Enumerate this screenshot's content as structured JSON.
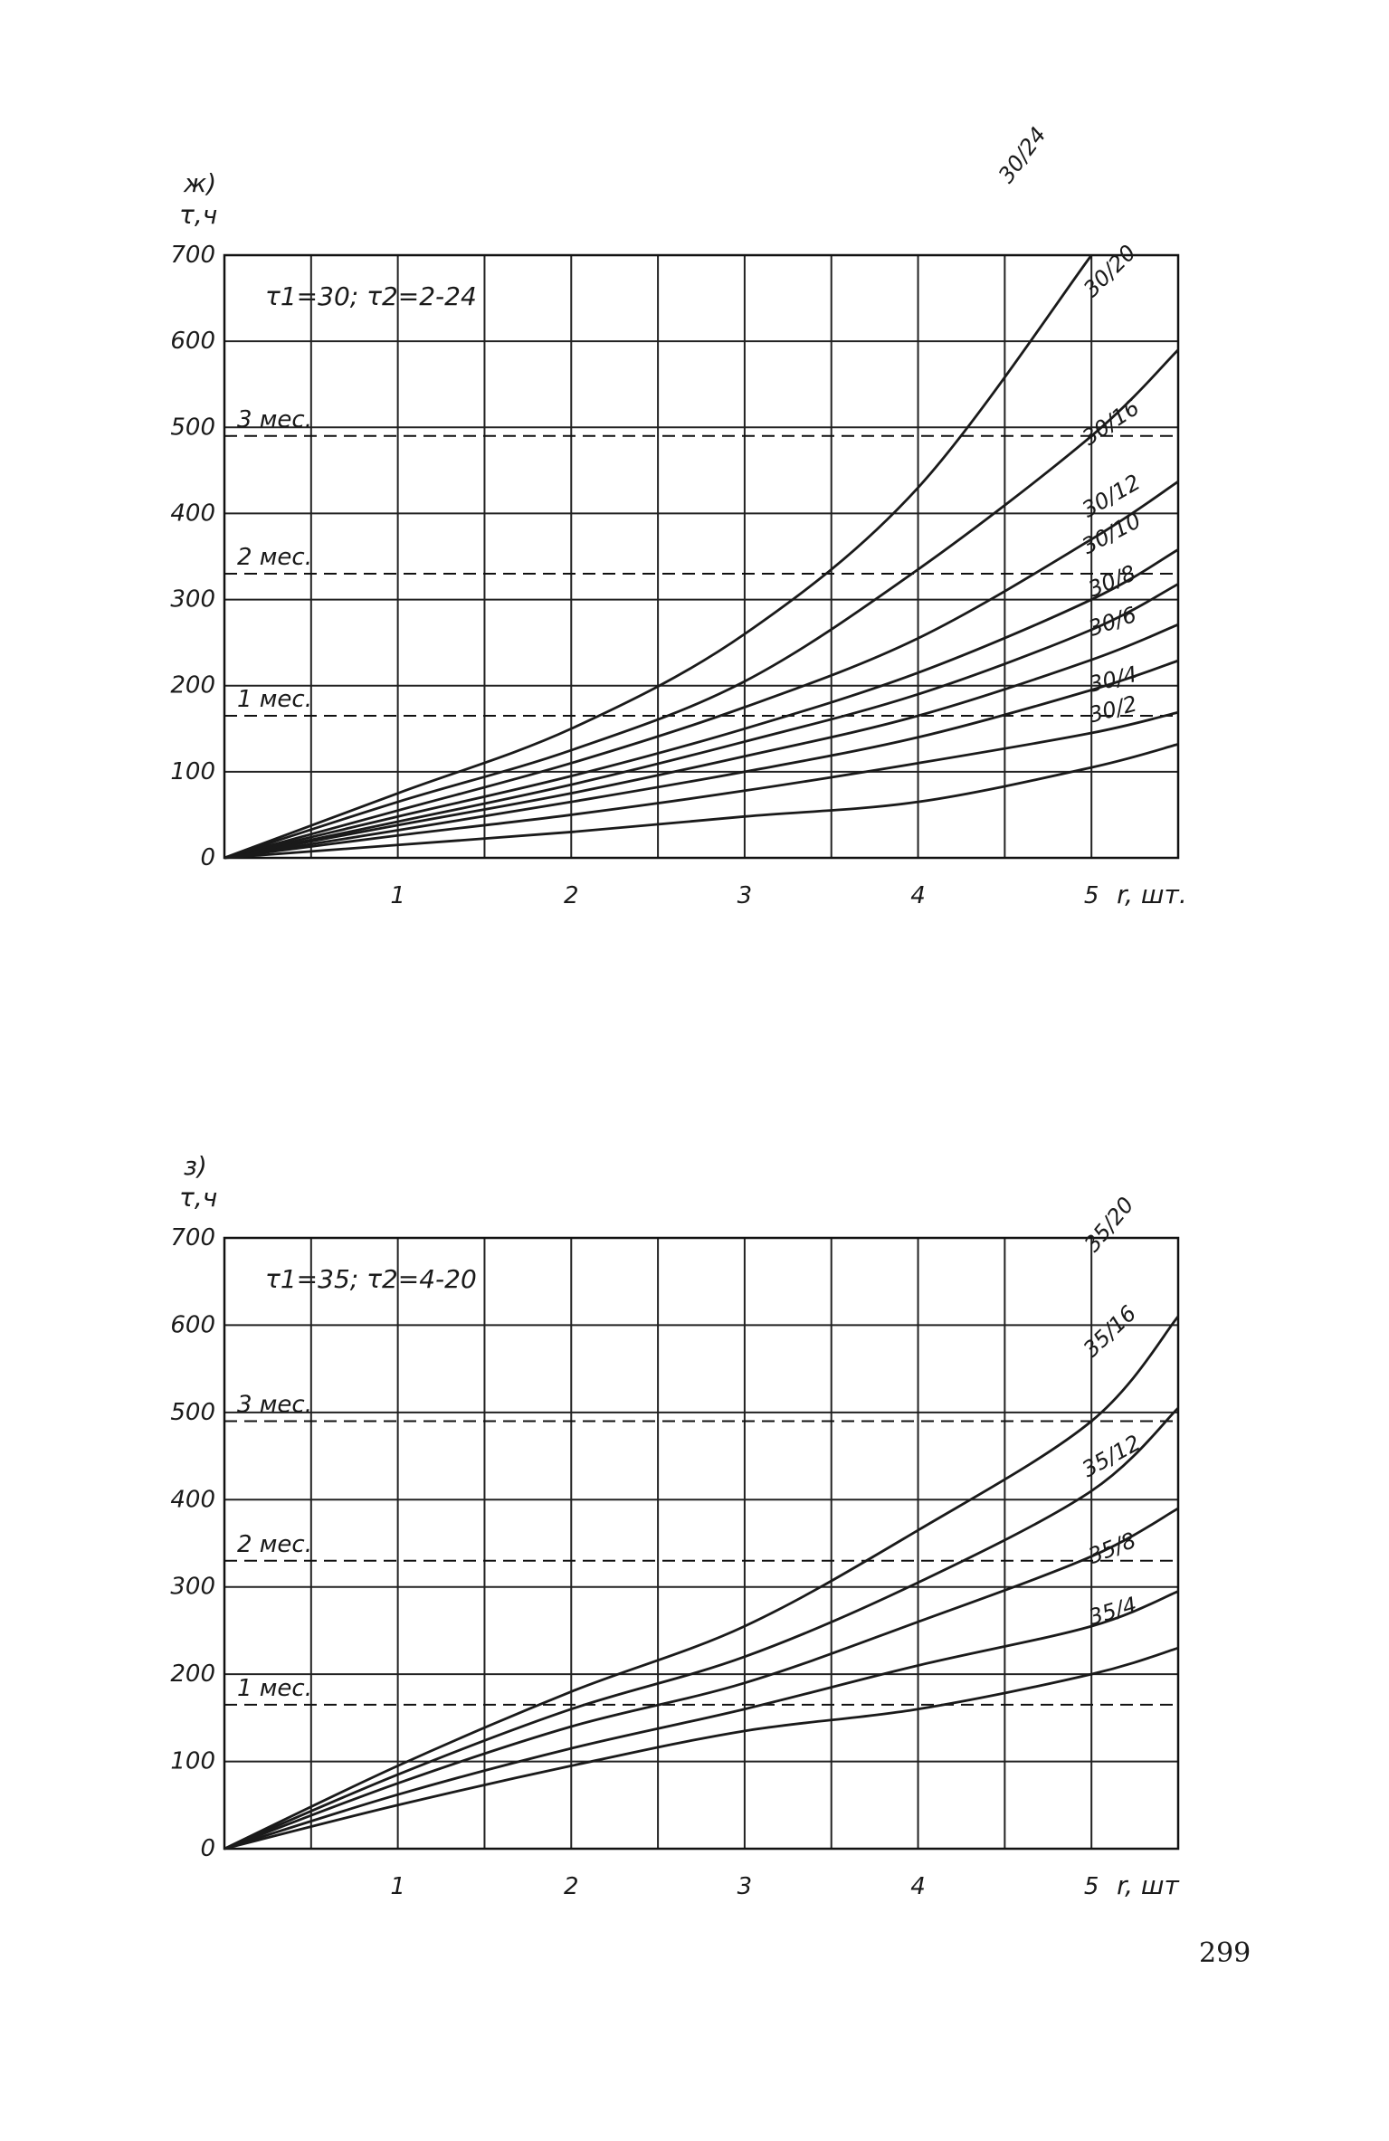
{
  "chart_data": [
    {
      "type": "line",
      "panel": "ж)",
      "y_label": "τ,ч",
      "x_label": "r, шт.",
      "note": "τ1=30; τ2=2-24",
      "xlim": [
        0,
        5.5
      ],
      "ylim": [
        0,
        700
      ],
      "xticks": [
        1,
        2,
        3,
        4,
        5
      ],
      "minor_xticks": [
        0.5,
        1.5,
        2.5,
        3.5,
        4.5
      ],
      "yticks": [
        0,
        100,
        200,
        300,
        400,
        500,
        600,
        700
      ],
      "grid": true,
      "color": "#1a1a1a",
      "month_lines": [
        {
          "label": "3 мес.",
          "value": 490
        },
        {
          "label": "2 мес.",
          "value": 330
        },
        {
          "label": "1 мес.",
          "value": 165
        }
      ],
      "x": [
        0,
        1,
        2,
        3,
        4,
        5,
        5.5
      ],
      "series": [
        {
          "name": "30/24",
          "values": [
            0,
            75,
            150,
            260,
            430,
            700,
            null
          ]
        },
        {
          "name": "30/20",
          "values": [
            0,
            65,
            125,
            205,
            335,
            490,
            590
          ]
        },
        {
          "name": "30/16",
          "values": [
            0,
            55,
            110,
            175,
            255,
            370,
            437
          ]
        },
        {
          "name": "30/12",
          "values": [
            0,
            48,
            95,
            150,
            215,
            300,
            358
          ]
        },
        {
          "name": "30/10",
          "values": [
            0,
            42,
            85,
            135,
            190,
            265,
            318
          ]
        },
        {
          "name": "30/8",
          "values": [
            0,
            38,
            75,
            118,
            165,
            230,
            271
          ]
        },
        {
          "name": "30/6",
          "values": [
            0,
            32,
            65,
            100,
            140,
            195,
            229
          ]
        },
        {
          "name": "30/4",
          "values": [
            0,
            26,
            50,
            78,
            110,
            145,
            169
          ]
        },
        {
          "name": "30/2",
          "values": [
            0,
            15,
            30,
            48,
            65,
            105,
            132
          ]
        }
      ]
    },
    {
      "type": "line",
      "panel": "з)",
      "y_label": "τ,ч",
      "x_label": "r, шт",
      "note": "τ1=35; τ2=4-20",
      "xlim": [
        0,
        5.5
      ],
      "ylim": [
        0,
        700
      ],
      "xticks": [
        1,
        2,
        3,
        4,
        5
      ],
      "minor_xticks": [
        0.5,
        1.5,
        2.5,
        3.5,
        4.5
      ],
      "yticks": [
        0,
        100,
        200,
        300,
        400,
        500,
        600,
        700
      ],
      "grid": true,
      "color": "#1a1a1a",
      "month_lines": [
        {
          "label": "3 мес.",
          "value": 490
        },
        {
          "label": "2 мес.",
          "value": 330
        },
        {
          "label": "1 мес.",
          "value": 165
        }
      ],
      "x": [
        0,
        1,
        2,
        3,
        4,
        5,
        5.5
      ],
      "series": [
        {
          "name": "35/20",
          "values": [
            0,
            95,
            180,
            255,
            365,
            490,
            610
          ]
        },
        {
          "name": "35/16",
          "values": [
            0,
            85,
            160,
            220,
            305,
            410,
            505
          ]
        },
        {
          "name": "35/12",
          "values": [
            0,
            75,
            140,
            190,
            260,
            335,
            390
          ]
        },
        {
          "name": "35/8",
          "values": [
            0,
            62,
            115,
            160,
            210,
            255,
            295
          ]
        },
        {
          "name": "35/4",
          "values": [
            0,
            50,
            95,
            135,
            160,
            200,
            230
          ]
        }
      ]
    }
  ],
  "page_number": "299"
}
